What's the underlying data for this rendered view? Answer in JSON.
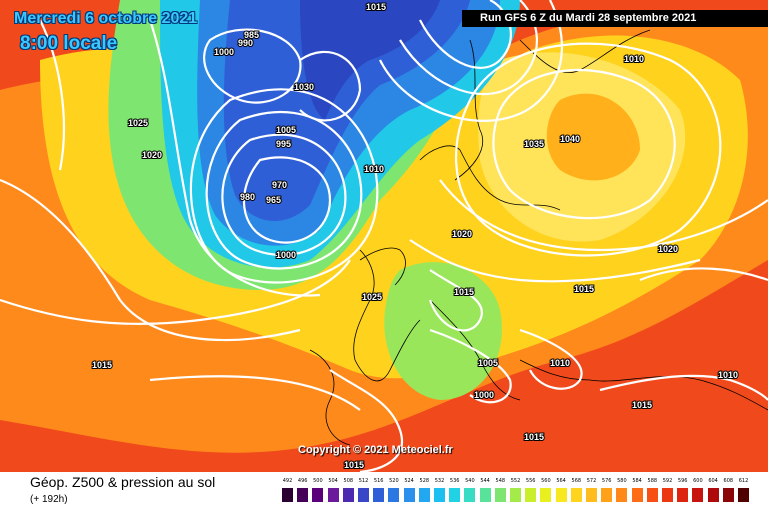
{
  "header": {
    "date_title": "Mercredi 6 octobre 2021",
    "time_title": "8:00 locale",
    "run_banner": "Run GFS 6 Z du Mardi 28 septembre 2021"
  },
  "copyright": "Copyright © 2021 Meteociel.fr",
  "footer": {
    "product_label": "Géop. Z500 & pression au sol",
    "lead_label": "(+ 192h)"
  },
  "legend": {
    "ticks": [
      "492",
      "496",
      "500",
      "504",
      "508",
      "512",
      "516",
      "520",
      "524",
      "528",
      "532",
      "536",
      "540",
      "544",
      "548",
      "552",
      "556",
      "560",
      "564",
      "568",
      "572",
      "576",
      "580",
      "584",
      "588",
      "592",
      "596",
      "600",
      "604",
      "608",
      "612"
    ],
    "colors": [
      "#2a0033",
      "#45005a",
      "#5a007a",
      "#6a1a9a",
      "#4b2ab0",
      "#3a46c8",
      "#2f5fd6",
      "#2b78e2",
      "#2a90ec",
      "#22a8f0",
      "#1cc0f0",
      "#20d2e4",
      "#38dcc4",
      "#58e29a",
      "#7ee670",
      "#a4ea48",
      "#c8ee2c",
      "#e8f020",
      "#f8e820",
      "#ffd41e",
      "#ffbc1c",
      "#ffa21a",
      "#ff8818",
      "#ff6c16",
      "#f85014",
      "#ec3812",
      "#dc2410",
      "#c8140e",
      "#ae0a0c",
      "#8a0408",
      "#500000"
    ]
  },
  "pressure_labels": [
    {
      "text": "1015"
    },
    {
      "text": "985"
    },
    {
      "text": "990"
    },
    {
      "text": "1000"
    },
    {
      "text": "1030"
    },
    {
      "text": "1025"
    },
    {
      "text": "1020"
    },
    {
      "text": "1035"
    },
    {
      "text": "1040"
    },
    {
      "text": "1005"
    },
    {
      "text": "995"
    },
    {
      "text": "970"
    },
    {
      "text": "965"
    },
    {
      "text": "980"
    },
    {
      "text": "1010"
    },
    {
      "text": "1000"
    },
    {
      "text": "1020"
    },
    {
      "text": "1015"
    },
    {
      "text": "1015"
    },
    {
      "text": "1025"
    },
    {
      "text": "1005"
    },
    {
      "text": "1010"
    },
    {
      "text": "1000"
    },
    {
      "text": "1010"
    },
    {
      "text": "1015"
    },
    {
      "text": "1015"
    },
    {
      "text": "1015"
    },
    {
      "text": "1015"
    },
    {
      "text": "1010"
    },
    {
      "text": "1020"
    }
  ]
}
